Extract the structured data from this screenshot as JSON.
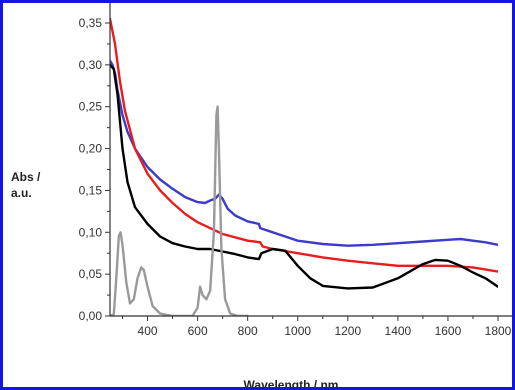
{
  "colors": {
    "frame": "#1414e8",
    "axis": "#333333",
    "blue_series": "#3c3cc8",
    "red_series": "#e81e1e",
    "black_series": "#000000",
    "gray_series": "#9a9a9a"
  },
  "chart_data": {
    "type": "line",
    "title": "",
    "xlabel": "Wavelength / nm",
    "ylabel_line1": "Abs /",
    "ylabel_line2": "a.u.",
    "xlim": [
      250,
      1800
    ],
    "ylim": [
      0,
      0.35
    ],
    "x_ticks": [
      400,
      600,
      800,
      1000,
      1200,
      1400,
      1600,
      1800
    ],
    "y_ticks": [
      0.0,
      0.05,
      0.1,
      0.15,
      0.2,
      0.25,
      0.3,
      0.35
    ],
    "x_tick_labels": [
      "400",
      "600",
      "800",
      "1000",
      "1200",
      "1400",
      "1600",
      "1800"
    ],
    "y_tick_labels": [
      "0,00",
      "0,05",
      "0,10",
      "0,15",
      "0,20",
      "0,25",
      "0,30",
      "0,35"
    ],
    "grid": false,
    "series": [
      {
        "color": "#3c3cc8",
        "points": [
          [
            250,
            0.305
          ],
          [
            260,
            0.3
          ],
          [
            270,
            0.29
          ],
          [
            280,
            0.27
          ],
          [
            300,
            0.24
          ],
          [
            320,
            0.22
          ],
          [
            350,
            0.2
          ],
          [
            400,
            0.178
          ],
          [
            450,
            0.163
          ],
          [
            500,
            0.152
          ],
          [
            550,
            0.142
          ],
          [
            600,
            0.136
          ],
          [
            630,
            0.135
          ],
          [
            650,
            0.138
          ],
          [
            670,
            0.14
          ],
          [
            685,
            0.145
          ],
          [
            700,
            0.14
          ],
          [
            720,
            0.128
          ],
          [
            750,
            0.12
          ],
          [
            800,
            0.113
          ],
          [
            845,
            0.11
          ],
          [
            850,
            0.105
          ],
          [
            900,
            0.1
          ],
          [
            950,
            0.095
          ],
          [
            1000,
            0.09
          ],
          [
            1100,
            0.086
          ],
          [
            1200,
            0.084
          ],
          [
            1300,
            0.085
          ],
          [
            1400,
            0.087
          ],
          [
            1500,
            0.089
          ],
          [
            1600,
            0.091
          ],
          [
            1650,
            0.092
          ],
          [
            1700,
            0.09
          ],
          [
            1750,
            0.088
          ],
          [
            1800,
            0.085
          ]
        ]
      },
      {
        "color": "#e81e1e",
        "points": [
          [
            250,
            0.355
          ],
          [
            270,
            0.325
          ],
          [
            290,
            0.28
          ],
          [
            310,
            0.245
          ],
          [
            350,
            0.2
          ],
          [
            400,
            0.17
          ],
          [
            450,
            0.15
          ],
          [
            500,
            0.135
          ],
          [
            550,
            0.122
          ],
          [
            600,
            0.112
          ],
          [
            650,
            0.105
          ],
          [
            700,
            0.098
          ],
          [
            800,
            0.09
          ],
          [
            850,
            0.088
          ],
          [
            860,
            0.083
          ],
          [
            900,
            0.08
          ],
          [
            1000,
            0.075
          ],
          [
            1100,
            0.07
          ],
          [
            1200,
            0.066
          ],
          [
            1300,
            0.063
          ],
          [
            1400,
            0.06
          ],
          [
            1500,
            0.06
          ],
          [
            1600,
            0.06
          ],
          [
            1700,
            0.058
          ],
          [
            1800,
            0.053
          ]
        ]
      },
      {
        "color": "#000000",
        "points": [
          [
            250,
            0.3
          ],
          [
            265,
            0.295
          ],
          [
            280,
            0.265
          ],
          [
            300,
            0.2
          ],
          [
            320,
            0.16
          ],
          [
            350,
            0.13
          ],
          [
            400,
            0.11
          ],
          [
            450,
            0.095
          ],
          [
            500,
            0.087
          ],
          [
            550,
            0.083
          ],
          [
            600,
            0.08
          ],
          [
            650,
            0.08
          ],
          [
            700,
            0.077
          ],
          [
            750,
            0.074
          ],
          [
            800,
            0.07
          ],
          [
            845,
            0.068
          ],
          [
            855,
            0.075
          ],
          [
            900,
            0.08
          ],
          [
            950,
            0.078
          ],
          [
            1000,
            0.06
          ],
          [
            1050,
            0.045
          ],
          [
            1100,
            0.036
          ],
          [
            1200,
            0.033
          ],
          [
            1300,
            0.034
          ],
          [
            1400,
            0.045
          ],
          [
            1500,
            0.062
          ],
          [
            1550,
            0.067
          ],
          [
            1600,
            0.066
          ],
          [
            1650,
            0.06
          ],
          [
            1700,
            0.052
          ],
          [
            1750,
            0.045
          ],
          [
            1800,
            0.035
          ]
        ]
      },
      {
        "color": "#9a9a9a",
        "points": [
          [
            250,
            0.0
          ],
          [
            265,
            0.002
          ],
          [
            275,
            0.045
          ],
          [
            285,
            0.095
          ],
          [
            292,
            0.1
          ],
          [
            300,
            0.085
          ],
          [
            315,
            0.04
          ],
          [
            330,
            0.015
          ],
          [
            345,
            0.02
          ],
          [
            360,
            0.045
          ],
          [
            375,
            0.058
          ],
          [
            385,
            0.055
          ],
          [
            400,
            0.035
          ],
          [
            420,
            0.012
          ],
          [
            450,
            0.003
          ],
          [
            500,
            0.0
          ],
          [
            580,
            0.0
          ],
          [
            600,
            0.01
          ],
          [
            610,
            0.035
          ],
          [
            620,
            0.025
          ],
          [
            635,
            0.02
          ],
          [
            650,
            0.03
          ],
          [
            665,
            0.1
          ],
          [
            675,
            0.24
          ],
          [
            680,
            0.25
          ],
          [
            685,
            0.2
          ],
          [
            695,
            0.08
          ],
          [
            710,
            0.02
          ],
          [
            730,
            0.003
          ],
          [
            760,
            0.0
          ],
          [
            800,
            0.0
          ]
        ]
      }
    ]
  }
}
